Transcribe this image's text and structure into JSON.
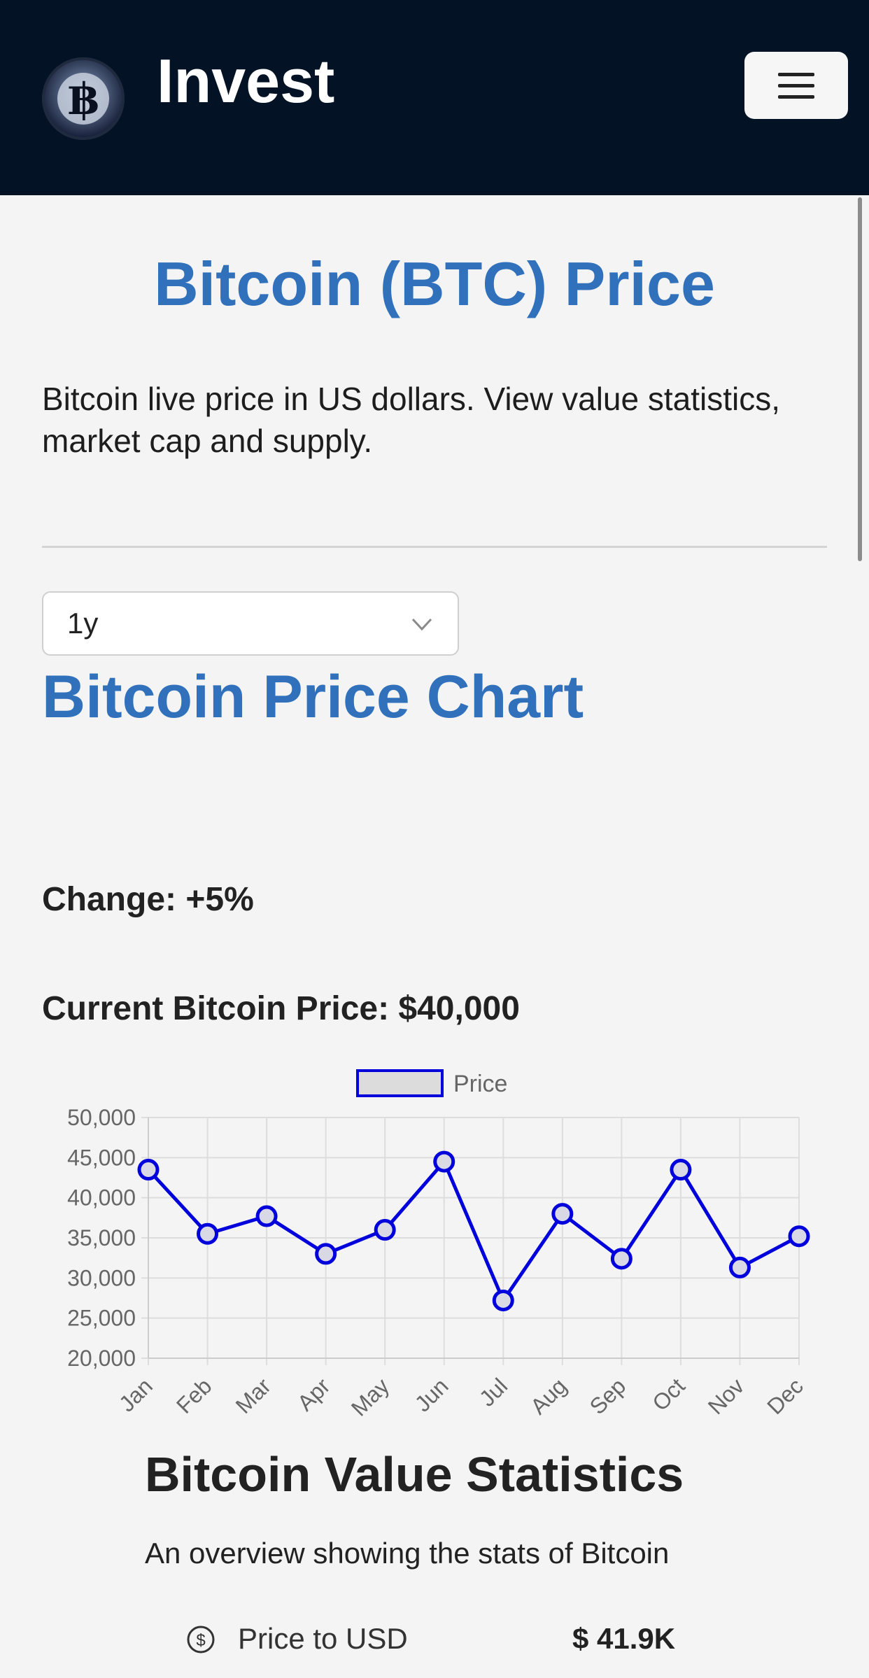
{
  "header": {
    "brand": "Invest",
    "logo_icon": "bitcoin-logo-icon",
    "menu_icon": "hamburger-menu-icon"
  },
  "main": {
    "title": "Bitcoin (BTC) Price",
    "intro": "Bitcoin live price in US dollars. View value statistics, market cap and supply.",
    "range_select": {
      "value": "1y",
      "icon": "chevron-down-icon"
    },
    "chart_heading": "Bitcoin Price Chart",
    "change": "Change: +5%",
    "current_price": "Current Bitcoin Price: $40,000"
  },
  "stats": {
    "title": "Bitcoin Value Statistics",
    "subtitle": "An overview showing the stats of Bitcoin",
    "rows": [
      {
        "icon": "dollar-circle-icon",
        "label": "Price to USD",
        "value": "$ 41.9K"
      }
    ]
  },
  "colors": {
    "header_bg": "#031325",
    "accent": "#3170bb",
    "series_line": "#0000dd",
    "page_bg": "#f4f4f4"
  },
  "chart_data": {
    "type": "line",
    "categories": [
      "Jan",
      "Feb",
      "Mar",
      "Apr",
      "May",
      "Jun",
      "Jul",
      "Aug",
      "Sep",
      "Oct",
      "Nov",
      "Dec"
    ],
    "series": [
      {
        "name": "Price",
        "values": [
          43500,
          35500,
          37700,
          33000,
          36000,
          44500,
          27200,
          38000,
          32400,
          43500,
          31300,
          35200
        ]
      }
    ],
    "ylim": [
      20000,
      50000
    ],
    "yticks": [
      "20,000",
      "25,000",
      "30,000",
      "35,000",
      "40,000",
      "45,000",
      "50,000"
    ],
    "ytick_values": [
      20000,
      25000,
      30000,
      35000,
      40000,
      45000,
      50000
    ],
    "legend": "top-center",
    "grid": true
  }
}
